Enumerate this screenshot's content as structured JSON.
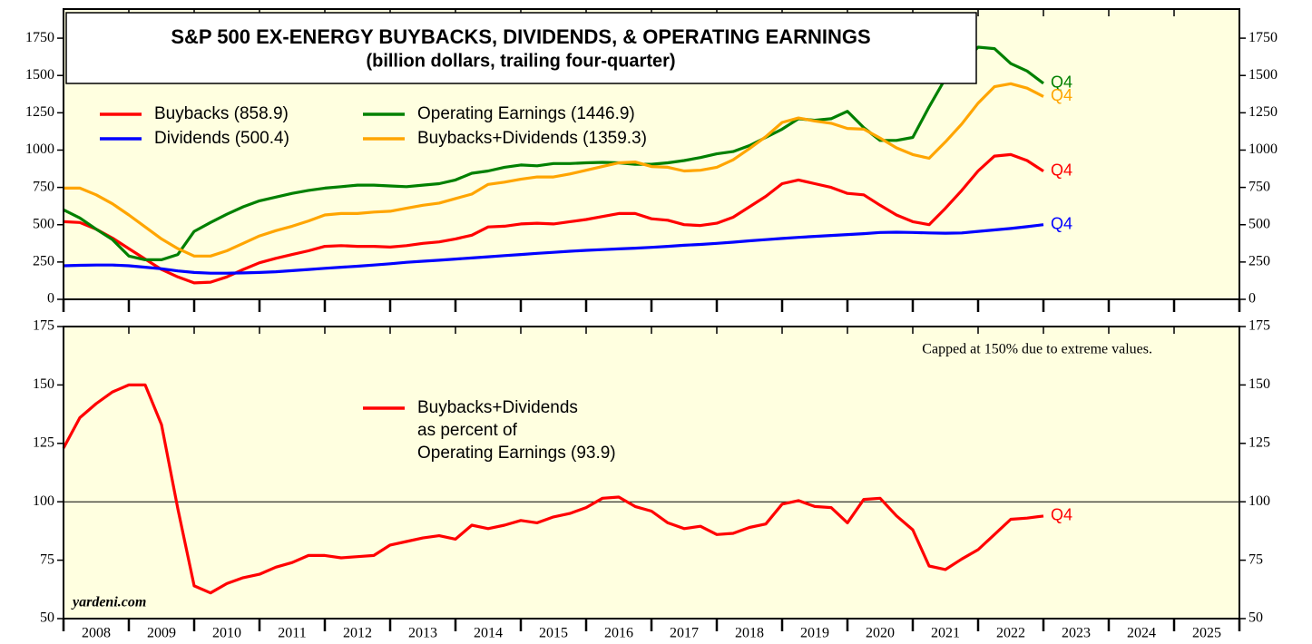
{
  "chart_data": [
    {
      "type": "line",
      "title": "S&P 500 EX-ENERGY BUYBACKS, DIVIDENDS, & OPERATING EARNINGS",
      "subtitle": "(billion dollars, trailing four-quarter)",
      "plot_background": "#ffffe0",
      "xlim": [
        2008,
        2026
      ],
      "xticks": [
        2008,
        2009,
        2010,
        2011,
        2012,
        2013,
        2014,
        2015,
        2016,
        2017,
        2018,
        2019,
        2020,
        2021,
        2022,
        2023,
        2024,
        2025,
        2026
      ],
      "ylim": [
        0,
        1945
      ],
      "yticks": [
        0,
        250,
        500,
        750,
        1000,
        1250,
        1500,
        1750
      ],
      "x": [
        2008,
        2008.25,
        2008.5,
        2008.75,
        2009,
        2009.25,
        2009.5,
        2009.75,
        2010,
        2010.25,
        2010.5,
        2010.75,
        2011,
        2011.25,
        2011.5,
        2011.75,
        2012,
        2012.25,
        2012.5,
        2012.75,
        2013,
        2013.25,
        2013.5,
        2013.75,
        2014,
        2014.25,
        2014.5,
        2014.75,
        2015,
        2015.25,
        2015.5,
        2015.75,
        2016,
        2016.25,
        2016.5,
        2016.75,
        2017,
        2017.25,
        2017.5,
        2017.75,
        2018,
        2018.25,
        2018.5,
        2018.75,
        2019,
        2019.25,
        2019.5,
        2019.75,
        2020,
        2020.25,
        2020.5,
        2020.75,
        2021,
        2021.25,
        2021.5,
        2021.75,
        2022,
        2022.25,
        2022.5,
        2022.75,
        2023
      ],
      "series": [
        {
          "name": "Buybacks (858.9)",
          "color": "#ff0000",
          "end_label": "Q4",
          "values": [
            520,
            515,
            470,
            410,
            340,
            270,
            200,
            150,
            110,
            115,
            150,
            200,
            245,
            275,
            300,
            325,
            355,
            360,
            355,
            355,
            350,
            360,
            375,
            385,
            405,
            430,
            485,
            490,
            505,
            510,
            505,
            520,
            535,
            555,
            575,
            575,
            540,
            530,
            500,
            495,
            510,
            550,
            620,
            690,
            775,
            800,
            775,
            750,
            710,
            700,
            630,
            565,
            520,
            500,
            610,
            730,
            860,
            960,
            970,
            930,
            858.9
          ]
        },
        {
          "name": "Dividends (500.4)",
          "color": "#0000ff",
          "end_label": "Q4",
          "values": [
            225,
            228,
            230,
            230,
            225,
            215,
            205,
            190,
            180,
            175,
            175,
            177,
            180,
            185,
            192,
            200,
            208,
            215,
            222,
            230,
            238,
            248,
            255,
            262,
            270,
            277,
            285,
            293,
            300,
            308,
            315,
            322,
            328,
            333,
            338,
            343,
            348,
            355,
            362,
            368,
            375,
            383,
            392,
            400,
            408,
            415,
            422,
            428,
            434,
            440,
            448,
            450,
            448,
            445,
            443,
            445,
            455,
            465,
            475,
            487,
            500.4
          ]
        },
        {
          "name": "Operating Earnings (1446.9)",
          "color": "#008000",
          "end_label": "Q4",
          "values": [
            600,
            545,
            470,
            400,
            290,
            265,
            265,
            300,
            455,
            515,
            570,
            620,
            660,
            685,
            710,
            730,
            745,
            755,
            765,
            765,
            760,
            755,
            765,
            775,
            800,
            845,
            860,
            885,
            900,
            895,
            910,
            910,
            915,
            918,
            915,
            905,
            905,
            915,
            930,
            950,
            975,
            990,
            1030,
            1085,
            1140,
            1210,
            1200,
            1210,
            1260,
            1150,
            1065,
            1065,
            1085,
            1290,
            1480,
            1580,
            1690,
            1680,
            1580,
            1530,
            1446.9
          ]
        },
        {
          "name": "Buybacks+Dividends (1359.3)",
          "color": "#ffa500",
          "end_label": "Q4",
          "values": [
            745,
            745,
            700,
            640,
            565,
            485,
            405,
            340,
            290,
            290,
            325,
            375,
            425,
            460,
            490,
            525,
            565,
            575,
            575,
            585,
            590,
            610,
            630,
            645,
            675,
            705,
            770,
            785,
            805,
            820,
            820,
            840,
            865,
            890,
            915,
            920,
            890,
            885,
            860,
            865,
            885,
            935,
            1010,
            1090,
            1185,
            1215,
            1195,
            1180,
            1145,
            1140,
            1080,
            1015,
            970,
            945,
            1055,
            1175,
            1315,
            1425,
            1445,
            1415,
            1359.3
          ]
        }
      ]
    },
    {
      "type": "line",
      "annotation": "Capped at 150% due to extreme values.",
      "source": "yardeni.com",
      "plot_background": "#ffffe0",
      "hline": 100,
      "xlim": [
        2008,
        2026
      ],
      "xticks": [
        2008,
        2009,
        2010,
        2011,
        2012,
        2013,
        2014,
        2015,
        2016,
        2017,
        2018,
        2019,
        2020,
        2021,
        2022,
        2023,
        2024,
        2025,
        2026
      ],
      "xlabels": [
        {
          "value": 2008.5,
          "label": "2008"
        },
        {
          "value": 2009.5,
          "label": "2009"
        },
        {
          "value": 2010.5,
          "label": "2010"
        },
        {
          "value": 2011.5,
          "label": "2011"
        },
        {
          "value": 2012.5,
          "label": "2012"
        },
        {
          "value": 2013.5,
          "label": "2013"
        },
        {
          "value": 2014.5,
          "label": "2014"
        },
        {
          "value": 2015.5,
          "label": "2015"
        },
        {
          "value": 2016.5,
          "label": "2016"
        },
        {
          "value": 2017.5,
          "label": "2017"
        },
        {
          "value": 2018.5,
          "label": "2018"
        },
        {
          "value": 2019.5,
          "label": "2019"
        },
        {
          "value": 2020.5,
          "label": "2020"
        },
        {
          "value": 2021.5,
          "label": "2021"
        },
        {
          "value": 2022.5,
          "label": "2022"
        },
        {
          "value": 2023.5,
          "label": "2023"
        },
        {
          "value": 2024.5,
          "label": "2024"
        },
        {
          "value": 2025.5,
          "label": "2025"
        }
      ],
      "ylim": [
        50,
        175
      ],
      "yticks": [
        50,
        75,
        100,
        125,
        150,
        175
      ],
      "x": [
        2008,
        2008.25,
        2008.5,
        2008.75,
        2009,
        2009.25,
        2009.5,
        2009.75,
        2010,
        2010.25,
        2010.5,
        2010.75,
        2011,
        2011.25,
        2011.5,
        2011.75,
        2012,
        2012.25,
        2012.5,
        2012.75,
        2013,
        2013.25,
        2013.5,
        2013.75,
        2014,
        2014.25,
        2014.5,
        2014.75,
        2015,
        2015.25,
        2015.5,
        2015.75,
        2016,
        2016.25,
        2016.5,
        2016.75,
        2017,
        2017.25,
        2017.5,
        2017.75,
        2018,
        2018.25,
        2018.5,
        2018.75,
        2019,
        2019.25,
        2019.5,
        2019.75,
        2020,
        2020.25,
        2020.5,
        2020.75,
        2021,
        2021.25,
        2021.5,
        2021.75,
        2022,
        2022.25,
        2022.5,
        2022.75,
        2023
      ],
      "series": [
        {
          "name": [
            "Buybacks+Dividends",
            "as percent of",
            "Operating Earnings (93.9)"
          ],
          "color": "#ff0000",
          "end_label": "Q4",
          "values": [
            123,
            136,
            142,
            147,
            150,
            150,
            133,
            97,
            64,
            61,
            65,
            67.5,
            69,
            72,
            74,
            77,
            77,
            76,
            76.5,
            77,
            81.5,
            83,
            84.5,
            85.5,
            84,
            90,
            88.5,
            90,
            92,
            91,
            93.5,
            95,
            97.5,
            101.5,
            102,
            98,
            96,
            91,
            88.5,
            89.5,
            86,
            86.5,
            89,
            90.5,
            99,
            100.5,
            98,
            97.5,
            91,
            101,
            101.5,
            94,
            88,
            72.5,
            71,
            75.5,
            79.5,
            86,
            92.5,
            93,
            93.9
          ]
        }
      ]
    }
  ]
}
